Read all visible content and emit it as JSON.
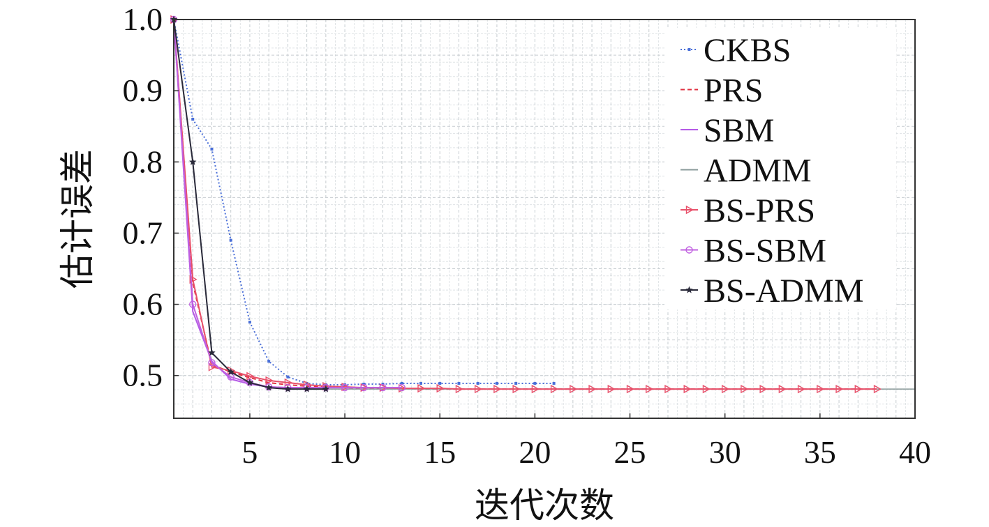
{
  "chart_data": {
    "type": "line",
    "title": "",
    "xlabel": "迭代次数",
    "ylabel": "估计误差",
    "xlim": [
      1,
      40
    ],
    "ylim": [
      0.44,
      1.0
    ],
    "grid": true,
    "legend_position": "top-right",
    "x_ticks": [
      5,
      10,
      15,
      20,
      25,
      30,
      35,
      40
    ],
    "x_tick_labels": [
      "5",
      "10",
      "15",
      "20",
      "25",
      "30",
      "35",
      "40"
    ],
    "y_ticks": [
      0.5,
      0.6,
      0.7,
      0.8,
      0.9,
      1.0
    ],
    "y_tick_labels": [
      "0.5",
      "0.6",
      "0.7",
      "0.8",
      "0.9",
      "1.0"
    ],
    "series": [
      {
        "name": "CKBS",
        "color": "#4a6fd8",
        "dash": "2,3",
        "marker": "dot",
        "x": [
          1,
          2,
          3,
          4,
          5,
          6,
          7,
          8,
          9,
          10,
          11,
          12,
          13,
          14,
          15,
          16,
          17,
          18,
          19,
          20,
          21
        ],
        "y": [
          1.0,
          0.86,
          0.818,
          0.69,
          0.575,
          0.52,
          0.498,
          0.489,
          0.487,
          0.487,
          0.488,
          0.488,
          0.489,
          0.489,
          0.489,
          0.489,
          0.489,
          0.489,
          0.489,
          0.489,
          0.489
        ]
      },
      {
        "name": "PRS",
        "color": "#e03040",
        "dash": "6,4",
        "marker": "none",
        "x": [
          1,
          2,
          3,
          4,
          5,
          6,
          7,
          8,
          9,
          10,
          11,
          12,
          13,
          14,
          15,
          16,
          17,
          18,
          19,
          20,
          21,
          22,
          23,
          24,
          25,
          26,
          27,
          28,
          29,
          30,
          31,
          32,
          33,
          34,
          35,
          36,
          37,
          38
        ],
        "y": [
          1.0,
          0.63,
          0.515,
          0.505,
          0.497,
          0.49,
          0.487,
          0.485,
          0.484,
          0.483,
          0.482,
          0.482,
          0.482,
          0.481,
          0.481,
          0.481,
          0.481,
          0.481,
          0.481,
          0.481,
          0.481,
          0.481,
          0.481,
          0.481,
          0.481,
          0.481,
          0.481,
          0.481,
          0.481,
          0.481,
          0.481,
          0.481,
          0.481,
          0.481,
          0.481,
          0.481,
          0.481,
          0.481
        ]
      },
      {
        "name": "SBM",
        "color": "#b45ae6",
        "dash": "",
        "marker": "none",
        "x": [
          1,
          2,
          3,
          4,
          5,
          6,
          7,
          8,
          9,
          10,
          11,
          12,
          13
        ],
        "y": [
          1.0,
          0.59,
          0.52,
          0.495,
          0.488,
          0.484,
          0.483,
          0.483,
          0.483,
          0.483,
          0.483,
          0.483,
          0.483
        ]
      },
      {
        "name": "ADMM",
        "color": "#8a9a9a",
        "dash": "",
        "marker": "none",
        "x": [
          1,
          2,
          3,
          4,
          5,
          6,
          7,
          8,
          9,
          10,
          20,
          30,
          40
        ],
        "y": [
          1.0,
          0.8,
          0.532,
          0.505,
          0.49,
          0.483,
          0.481,
          0.481,
          0.481,
          0.481,
          0.481,
          0.481,
          0.481
        ]
      },
      {
        "name": "BS-PRS",
        "color": "#e8506a",
        "dash": "",
        "marker": "triangle-right",
        "x": [
          1,
          2,
          3,
          4,
          5,
          6,
          7,
          8,
          9,
          10,
          11,
          12,
          13,
          14,
          15,
          16,
          17,
          18,
          19,
          20,
          21,
          22,
          23,
          24,
          25,
          26,
          27,
          28,
          29,
          30,
          31,
          32,
          33,
          34,
          35,
          36,
          37,
          38
        ],
        "y": [
          1.0,
          0.635,
          0.512,
          0.507,
          0.499,
          0.493,
          0.49,
          0.487,
          0.485,
          0.484,
          0.483,
          0.483,
          0.482,
          0.482,
          0.482,
          0.481,
          0.481,
          0.481,
          0.481,
          0.481,
          0.481,
          0.481,
          0.481,
          0.481,
          0.481,
          0.481,
          0.481,
          0.481,
          0.481,
          0.481,
          0.481,
          0.481,
          0.481,
          0.481,
          0.481,
          0.481,
          0.481,
          0.481
        ]
      },
      {
        "name": "BS-SBM",
        "color": "#c060e0",
        "dash": "",
        "marker": "circle",
        "x": [
          1,
          2,
          3,
          4,
          5,
          6,
          7,
          8,
          9,
          10,
          11,
          12,
          13
        ],
        "y": [
          1.0,
          0.6,
          0.518,
          0.498,
          0.49,
          0.484,
          0.483,
          0.483,
          0.483,
          0.483,
          0.483,
          0.483,
          0.483
        ]
      },
      {
        "name": "BS-ADMM",
        "color": "#2a2a3a",
        "dash": "",
        "marker": "star",
        "x": [
          1,
          2,
          3,
          4,
          5,
          6,
          7,
          8,
          9
        ],
        "y": [
          1.0,
          0.8,
          0.532,
          0.505,
          0.49,
          0.483,
          0.481,
          0.481,
          0.481
        ]
      }
    ]
  }
}
